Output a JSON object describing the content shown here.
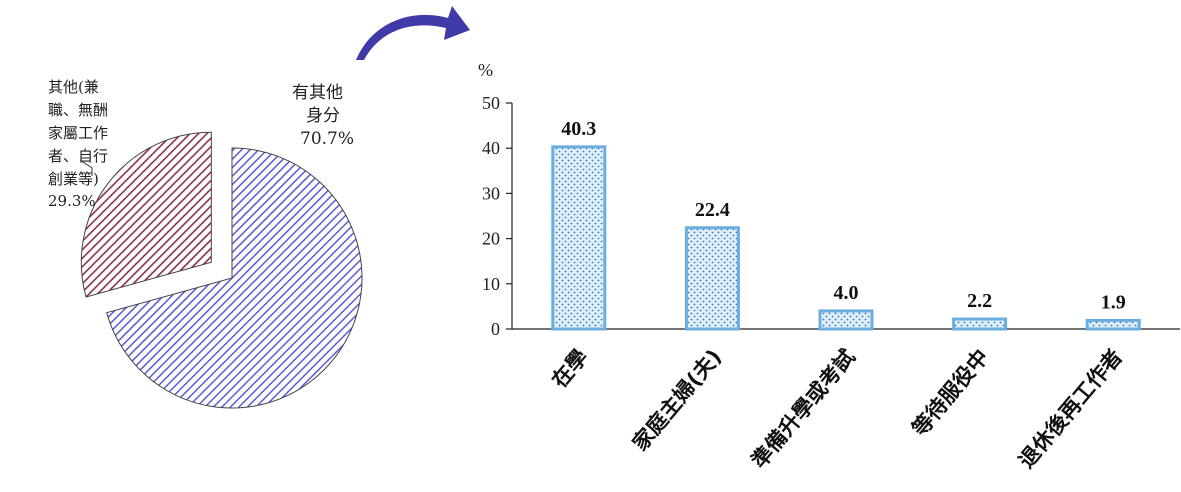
{
  "colors": {
    "pie_other": "#8b2f4c",
    "pie_main": "#5b5bd6",
    "bar_fill": "#dff0fb",
    "bar_dots": "#3a73b4",
    "bar_border": "#6aaee0",
    "arrow": "#3f3aa8"
  },
  "pie": {
    "slices": [
      {
        "label_lines": [
          "其他(兼",
          "職、無酬",
          "家屬工作",
          "者、自行",
          "創業等)"
        ],
        "value_text": "29.3%",
        "value": 29.3
      },
      {
        "label_lines": [
          "有其他",
          "身分"
        ],
        "value_text": "70.7%",
        "value": 70.7
      }
    ]
  },
  "chart_data": {
    "type": "bar",
    "unit_label": "%",
    "categories": [
      "在學",
      "家庭主婦(夫)",
      "準備升學或考試",
      "等待服役中",
      "退休後再工作者"
    ],
    "values": [
      40.3,
      22.4,
      4.0,
      2.2,
      1.9
    ],
    "value_labels": [
      "40.3",
      "22.4",
      "4.0",
      "2.2",
      "1.9"
    ],
    "ylim": [
      0,
      50
    ],
    "yticks": [
      0,
      10,
      20,
      30,
      40,
      50
    ],
    "grid": false,
    "legend": "none"
  }
}
